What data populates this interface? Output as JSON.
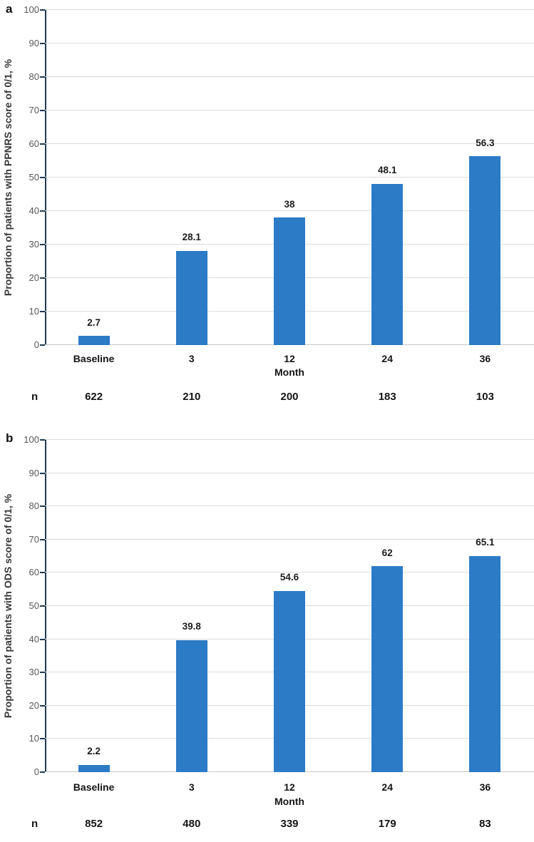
{
  "colors": {
    "bar": "#2C7BC6",
    "axis_line": "#1E3A52",
    "gridline": "#DCDCDC",
    "baseline_line": "#C6C6C6",
    "ytick_text": "#595959",
    "label_text": "#141414"
  },
  "chart_data": [
    {
      "type": "bar",
      "panel_label": "a",
      "ylabel": "Proportion of patients with PPNRS score of 0/1, %",
      "xlabel": "Month",
      "categories": [
        "Baseline",
        "3",
        "12",
        "24",
        "36"
      ],
      "values": [
        2.7,
        28.1,
        38,
        48.1,
        56.3
      ],
      "value_labels": [
        "2.7",
        "28.1",
        "38",
        "48.1",
        "56.3"
      ],
      "n_label": "n",
      "n_values": [
        "622",
        "210",
        "200",
        "183",
        "103"
      ],
      "ylim": [
        0,
        100
      ],
      "ytick_step": 10,
      "grid": true,
      "legend": "none",
      "bar_color": "#2C7BC6"
    },
    {
      "type": "bar",
      "panel_label": "b",
      "ylabel": "Proportion of patients with ODS score of 0/1, %",
      "xlabel": "Month",
      "categories": [
        "Baseline",
        "3",
        "12",
        "24",
        "36"
      ],
      "values": [
        2.2,
        39.8,
        54.6,
        62,
        65.1
      ],
      "value_labels": [
        "2.2",
        "39.8",
        "54.6",
        "62",
        "65.1"
      ],
      "n_label": "n",
      "n_values": [
        "852",
        "480",
        "339",
        "179",
        "83"
      ],
      "ylim": [
        0,
        100
      ],
      "ytick_step": 10,
      "grid": true,
      "legend": "none",
      "bar_color": "#2C7BC6"
    }
  ]
}
